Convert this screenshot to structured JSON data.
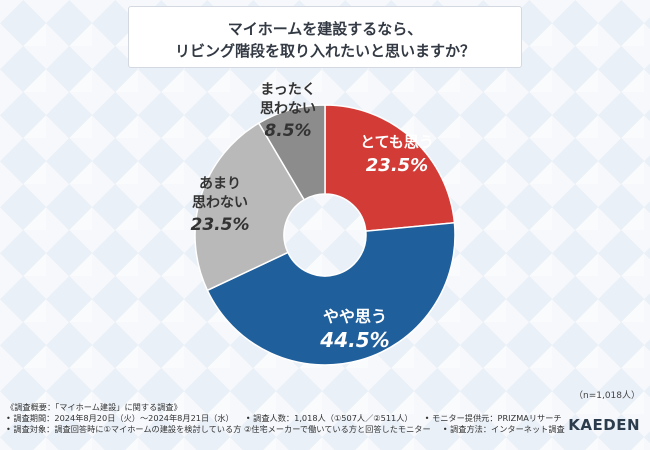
{
  "title": {
    "line1": "マイホームを建設するなら、",
    "line2": "リビング階段を取り入れたいと思いますか？"
  },
  "chart_data": {
    "type": "pie",
    "style": "donut",
    "start": "top, clockwise",
    "slices": [
      {
        "label": [
          "とても思う"
        ],
        "value": 23.5,
        "value_label": "23.5%",
        "color": "#d33b36",
        "label_color": "#ffffff"
      },
      {
        "label": [
          "やや思う"
        ],
        "value": 44.5,
        "value_label": "44.5%",
        "color": "#1f5f9c",
        "label_color": "#ffffff"
      },
      {
        "label": [
          "あまり",
          "思わない"
        ],
        "value": 23.5,
        "value_label": "23.5%",
        "color": "#b9b9b9",
        "label_color": "#333333"
      },
      {
        "label": [
          "まったく",
          "思わない"
        ],
        "value": 8.5,
        "value_label": "8.5%",
        "color": "#8c8c8c",
        "label_color": "#333333"
      }
    ]
  },
  "n_label": "（n=1,018人）",
  "footer": {
    "line1": "《調査概要：「マイホーム建設」に関する調査》",
    "line2a": "• 調査期間：2024年8月20日（火）～2024年8月21日（水）",
    "line2b": "• 調査人数：1,018人（①507人／②511人）",
    "line2c": "• モニター提供元：PRIZMAリサーチ",
    "line3a": "• 調査対象：調査回答時に①マイホームの建設を検討している方 ②住宅メーカーで働いている方と回答したモニター",
    "line3b": "• 調査方法：インターネット調査"
  },
  "logo": "KAEDEN"
}
